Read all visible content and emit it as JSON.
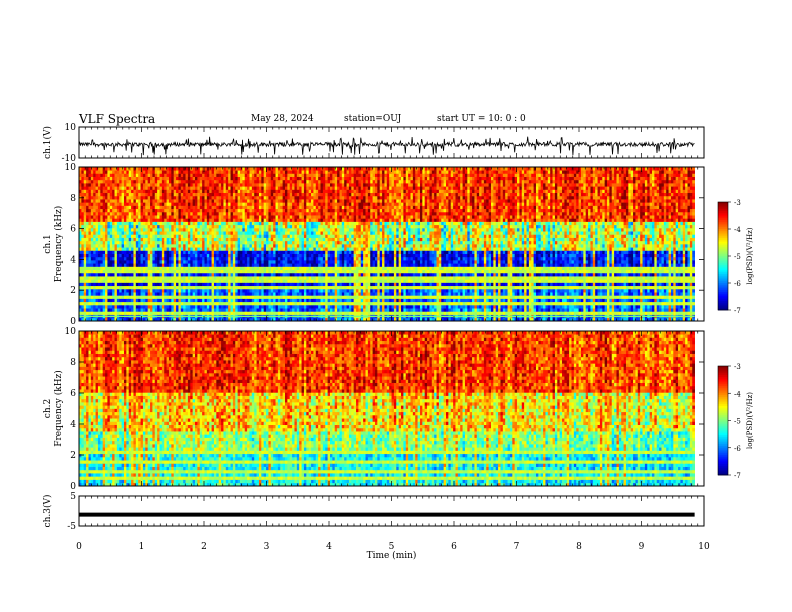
{
  "header": {
    "title": "VLF Spectra",
    "date": "May 28, 2024",
    "station": "station=OUJ",
    "start": "start  UT =   10: 0  : 0"
  },
  "chart_data": [
    {
      "type": "line",
      "name": "waveform-ch1",
      "ylabel": "ch.1(V)",
      "ylim": [
        -10,
        10
      ],
      "yticks": [
        "10",
        "-10"
      ],
      "xlim": [
        0,
        10
      ],
      "x_end": 9.85
    },
    {
      "type": "heatmap",
      "name": "spectrogram-ch1",
      "ylabel": "ch.1 Frequency (kHz)",
      "ylim": [
        0,
        10
      ],
      "yticks": [
        "0",
        "2",
        "4",
        "6",
        "8",
        "10"
      ],
      "xlim": [
        0,
        10
      ],
      "x_end": 9.85,
      "colorbar": {
        "label": "log(PSD)(V²/Hz)",
        "range": [
          -7,
          -3
        ],
        "ticks": [
          "-3",
          "-4",
          "-5",
          "-6",
          "-7"
        ]
      }
    },
    {
      "type": "heatmap",
      "name": "spectrogram-ch2",
      "ylabel": "ch.2 Frequency (kHz)",
      "ylim": [
        0,
        10
      ],
      "yticks": [
        "0",
        "2",
        "4",
        "6",
        "8",
        "10"
      ],
      "xlim": [
        0,
        10
      ],
      "x_end": 9.85,
      "colorbar": {
        "label": "log(PSD)(V²/Hz)",
        "range": [
          -7,
          -3
        ],
        "ticks": [
          "-3",
          "-4",
          "-5",
          "-6",
          "-7"
        ]
      }
    },
    {
      "type": "line",
      "name": "waveform-ch3",
      "ylabel": "ch.3(V)",
      "ylim": [
        -5,
        5
      ],
      "yticks": [
        "5",
        "-5"
      ],
      "xlim": [
        0,
        10
      ],
      "x_end": 9.85,
      "level": -1.2
    }
  ],
  "xaxis": {
    "label": "Time (min)",
    "ticks": [
      "0",
      "1",
      "2",
      "3",
      "4",
      "5",
      "6",
      "7",
      "8",
      "9",
      "10"
    ]
  }
}
